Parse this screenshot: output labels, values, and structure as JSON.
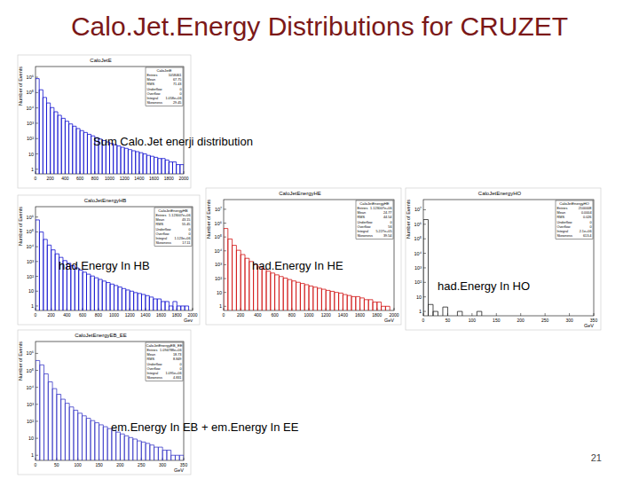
{
  "slide_title": "Calo.Jet.Energy Distributions for CRUZET",
  "page_number": 21,
  "chart_data": [
    {
      "type": "histogram",
      "title": "CaloJetE",
      "annotation": "Sum Calo.Jet enerji distribution",
      "y_label": "Number of Events",
      "color": "#1010d0",
      "log": "y",
      "bins": [
        0,
        50,
        100,
        150,
        200,
        250,
        300,
        350,
        400,
        450,
        500,
        550,
        600,
        650,
        700,
        750,
        800,
        850,
        900,
        950,
        1000,
        1050,
        1100,
        1150,
        1200,
        1250,
        1300,
        1350,
        1400,
        1450,
        1500,
        1550,
        1600,
        1650,
        1700,
        1750,
        1800,
        1850,
        1900,
        1950,
        2000
      ],
      "counts": [
        812000,
        152000,
        48000,
        21000,
        10500,
        5600,
        3300,
        2100,
        1350,
        900,
        640,
        450,
        330,
        250,
        190,
        150,
        115,
        92,
        74,
        60,
        48,
        40,
        33,
        27,
        23,
        19,
        16,
        14,
        12,
        10,
        8,
        7,
        6,
        5,
        5,
        4,
        3,
        3,
        2,
        2
      ],
      "xlim": [
        0,
        2000
      ],
      "xticks": [
        0,
        200,
        400,
        600,
        800,
        1000,
        1200,
        1400,
        1600,
        1800,
        2000
      ],
      "ylim": [
        0.5,
        5000000
      ],
      "yticks": [
        1,
        10,
        {
          "value": 100,
          "label": "10²"
        },
        {
          "value": 1000,
          "label": "10³"
        },
        {
          "value": 10000,
          "label": "10⁴"
        },
        {
          "value": 100000,
          "label": "10⁵"
        },
        {
          "value": 1000000,
          "label": "10⁶"
        }
      ],
      "stats": {
        "title": "CaloJetE",
        "rows": [
          {
            "label": "Entries",
            "value": "1058461"
          },
          {
            "label": "Mean",
            "value": "67.75"
          },
          {
            "label": "RMS",
            "value": "71.43"
          },
          {
            "label": "Underflow",
            "value": "0"
          },
          {
            "label": "Overflow",
            "value": "0"
          },
          {
            "label": "Integral",
            "value": "1.058e+06"
          },
          {
            "label": "Skewness",
            "value": "29.45"
          }
        ]
      }
    },
    {
      "type": "histogram",
      "title": "CaloJetEnergyHB",
      "annotation": "had.Energy In HB",
      "y_label": "Number of Events",
      "x_label": "Gev",
      "color": "#1010d0",
      "log": "y",
      "bins": [
        0,
        50,
        100,
        150,
        200,
        250,
        300,
        350,
        400,
        450,
        500,
        550,
        600,
        650,
        700,
        750,
        800,
        850,
        900,
        950,
        1000,
        1050,
        1100,
        1150,
        1200,
        1250,
        1300,
        1350,
        1400,
        1450,
        1500,
        1550,
        1600,
        1650,
        1700,
        1750,
        1800,
        1850,
        1900,
        1950,
        2000
      ],
      "counts": [
        640000,
        98000,
        31000,
        12800,
        6100,
        3300,
        1900,
        1150,
        760,
        520,
        370,
        260,
        190,
        140,
        105,
        80,
        62,
        48,
        38,
        30,
        24,
        19,
        15,
        12,
        10,
        8,
        7,
        6,
        5,
        4,
        3,
        3,
        2,
        2,
        1,
        2,
        1,
        1,
        1,
        0
      ],
      "xlim": [
        0,
        2000
      ],
      "xticks": [
        0,
        200,
        400,
        600,
        800,
        1000,
        1200,
        1400,
        1600,
        1800,
        2000
      ],
      "ylim": [
        0.5,
        5000000
      ],
      "yticks": [
        1,
        10,
        {
          "value": 100,
          "label": "10²"
        },
        {
          "value": 1000,
          "label": "10³"
        },
        {
          "value": 10000,
          "label": "10⁴"
        },
        {
          "value": 100000,
          "label": "10⁵"
        },
        {
          "value": 1000000,
          "label": "10⁶"
        }
      ],
      "stats": {
        "title": "CaloJetEnergyHB",
        "rows": [
          {
            "label": "Entries",
            "value": "1.123007e+06"
          },
          {
            "label": "Mean",
            "value": "43.15"
          },
          {
            "label": "RMS",
            "value": "55.45"
          },
          {
            "label": "Underflow",
            "value": "0"
          },
          {
            "label": "Overflow",
            "value": "0"
          },
          {
            "label": "Integral",
            "value": "1.123e+06"
          },
          {
            "label": "Skewness",
            "value": "17.11"
          }
        ]
      }
    },
    {
      "type": "histogram",
      "title": "CaloJetEnergyHE",
      "annotation": "had.Energy In HE",
      "y_label": "Number of Events",
      "x_label": "GeV",
      "color": "#d01010",
      "log": "y",
      "bins": [
        0,
        50,
        100,
        150,
        200,
        250,
        300,
        350,
        400,
        450,
        500,
        550,
        600,
        650,
        700,
        750,
        800,
        850,
        900,
        950,
        1000,
        1050,
        1100,
        1150,
        1200,
        1250,
        1300,
        1350,
        1400,
        1450,
        1500,
        1550,
        1600,
        1650,
        1700,
        1750,
        1800,
        1850,
        1900,
        1950,
        2000
      ],
      "counts": [
        410000,
        72000,
        25000,
        11000,
        5400,
        2900,
        1700,
        1050,
        700,
        480,
        340,
        250,
        185,
        140,
        108,
        85,
        67,
        54,
        44,
        36,
        29,
        24,
        20,
        17,
        14,
        12,
        10,
        9,
        7,
        6,
        5,
        5,
        4,
        3,
        3,
        2,
        2,
        1,
        1,
        0
      ],
      "xlim": [
        0,
        2000
      ],
      "xticks": [
        0,
        200,
        400,
        600,
        800,
        1000,
        1200,
        1400,
        1600,
        1800,
        2000
      ],
      "ylim": [
        0.5,
        50000000
      ],
      "yticks": [
        1,
        10,
        {
          "value": 100,
          "label": "10²"
        },
        {
          "value": 1000,
          "label": "10³"
        },
        {
          "value": 10000,
          "label": "10⁴"
        },
        {
          "value": 100000,
          "label": "10⁵"
        },
        {
          "value": 1000000,
          "label": "10⁶"
        },
        {
          "value": 10000000,
          "label": "10⁷"
        }
      ],
      "stats": {
        "title": "CaloJetEnergyHE",
        "rows": [
          {
            "label": "Entries",
            "value": "1.123007e+06"
          },
          {
            "label": "Mean",
            "value": "24.77"
          },
          {
            "label": "RMS",
            "value": "44.54"
          },
          {
            "label": "Underflow",
            "value": "0"
          },
          {
            "label": "Overflow",
            "value": "56"
          },
          {
            "label": "Integral",
            "value": "5.227e+05"
          },
          {
            "label": "Skewness",
            "value": "39.54"
          }
        ]
      }
    },
    {
      "type": "histogram",
      "title": "CaloJetEnergyHO",
      "annotation": "had.Energy In HO",
      "y_label": "Number of Events",
      "x_label": "GeV",
      "color": "#202020",
      "log": "y",
      "bins": [
        0,
        10,
        20,
        30,
        40,
        50,
        60,
        70,
        80,
        90,
        100,
        110,
        120,
        130,
        140,
        150,
        160,
        170,
        180,
        190,
        200,
        210,
        220,
        230,
        240,
        250,
        260,
        270,
        280,
        290,
        300,
        310,
        320,
        330,
        340,
        350
      ],
      "counts": [
        2100000,
        3,
        1,
        0,
        2,
        0,
        0,
        1,
        0,
        0,
        0,
        1,
        0,
        0,
        0,
        0,
        0,
        0,
        0,
        0,
        0,
        0,
        0,
        0,
        0,
        0,
        0,
        0,
        0,
        0,
        0,
        0,
        0,
        0,
        0
      ],
      "xlim": [
        0,
        350
      ],
      "xticks": [
        0,
        50,
        100,
        150,
        200,
        250,
        300,
        350
      ],
      "ylim": [
        0.5,
        50000000
      ],
      "yticks": [
        1,
        10,
        {
          "value": 100,
          "label": "10²"
        },
        {
          "value": 1000,
          "label": "10³"
        },
        {
          "value": 10000,
          "label": "10⁴"
        },
        {
          "value": 100000,
          "label": "10⁵"
        },
        {
          "value": 1000000,
          "label": "10⁶"
        },
        {
          "value": 10000000,
          "label": "10⁷"
        }
      ],
      "stats": {
        "title": "CaloJetEnergyHO",
        "rows": [
          {
            "label": "Entries",
            "value": "2100008"
          },
          {
            "label": "Mean",
            "value": "0.0004"
          },
          {
            "label": "RMS",
            "value": "0.026"
          },
          {
            "label": "Underflow",
            "value": "0"
          },
          {
            "label": "Overflow",
            "value": "0"
          },
          {
            "label": "Integral",
            "value": "2.1e+06"
          },
          {
            "label": "Skewness",
            "value": "613.4"
          }
        ]
      }
    },
    {
      "type": "histogram",
      "title": "CaloJetEnergyEB_EE",
      "annotation": "em.Energy In EB + em.Energy In EE",
      "y_label": "Number of Events",
      "x_label": "GeV",
      "color": "#3a3ac8",
      "log": "y",
      "bins": [
        0,
        10,
        20,
        30,
        40,
        50,
        60,
        70,
        80,
        90,
        100,
        110,
        120,
        130,
        140,
        150,
        160,
        170,
        180,
        190,
        200,
        210,
        220,
        230,
        240,
        250,
        260,
        270,
        280,
        290,
        300,
        310,
        320,
        330,
        340,
        350
      ],
      "counts": [
        380000,
        210000,
        62000,
        21000,
        8400,
        3900,
        2000,
        1150,
        700,
        450,
        300,
        210,
        150,
        110,
        82,
        62,
        48,
        37,
        29,
        23,
        18,
        14,
        11,
        9,
        7,
        6,
        5,
        4,
        3,
        3,
        2,
        2,
        1,
        1,
        1
      ],
      "xlim": [
        0,
        350
      ],
      "xticks": [
        0,
        50,
        100,
        150,
        200,
        250,
        300,
        350
      ],
      "ylim": [
        0.5,
        5000000
      ],
      "yticks": [
        1,
        10,
        {
          "value": 100,
          "label": "10²"
        },
        {
          "value": 1000,
          "label": "10³"
        },
        {
          "value": 10000,
          "label": "10⁴"
        },
        {
          "value": 100000,
          "label": "10⁵"
        },
        {
          "value": 1000000,
          "label": "10⁶"
        }
      ],
      "stats": {
        "title": "CaloJetEnergyEB_EE",
        "rows": [
          {
            "label": "Entries",
            "value": "1.094788e+06"
          },
          {
            "label": "Mean",
            "value": "18.73"
          },
          {
            "label": "RMS",
            "value": "8.849"
          },
          {
            "label": "Underflow",
            "value": "0"
          },
          {
            "label": "Overflow",
            "value": "0"
          },
          {
            "label": "Integral",
            "value": "1.095e+06"
          },
          {
            "label": "Skewness",
            "value": "4.831"
          }
        ]
      }
    }
  ]
}
